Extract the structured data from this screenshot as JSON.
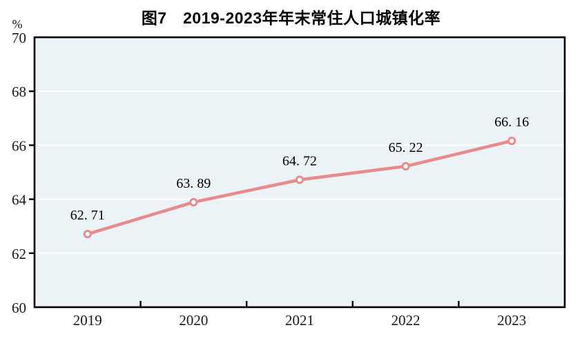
{
  "title": {
    "text": "图7　2019-2023年年末常住人口城镇化率"
  },
  "chart_data": {
    "type": "line",
    "title": "图7　2019-2023年年末常住人口城镇化率",
    "subtitle": "",
    "unit_label": "%",
    "xlabel": "",
    "ylabel": "%",
    "categories": [
      "2019",
      "2020",
      "2021",
      "2022",
      "2023"
    ],
    "series": [
      {
        "name": "年末常住人口城镇化率",
        "values": [
          62.71,
          63.89,
          64.72,
          65.22,
          66.16
        ],
        "data_labels": [
          "62. 71",
          "63. 89",
          "64. 72",
          "65. 22",
          "66. 16"
        ]
      }
    ],
    "ylim": [
      60,
      70
    ],
    "yticks": [
      60,
      62,
      64,
      66,
      68,
      70
    ],
    "ytick_labels": [
      "60",
      "62",
      "64",
      "66",
      "68",
      "70"
    ],
    "grid": true,
    "legend_position": "none",
    "colors": {
      "line": "#e88b8b",
      "marker_fill": "#ffffff",
      "marker_stroke": "#e88b8b",
      "plot_background": "#ebf3f6",
      "gridline": "#ffffff",
      "axis": "#000000",
      "tick_text": "#1a1a1a",
      "label_text": "#000000",
      "title_text": "#000000",
      "page_background": "#ffffff"
    }
  }
}
